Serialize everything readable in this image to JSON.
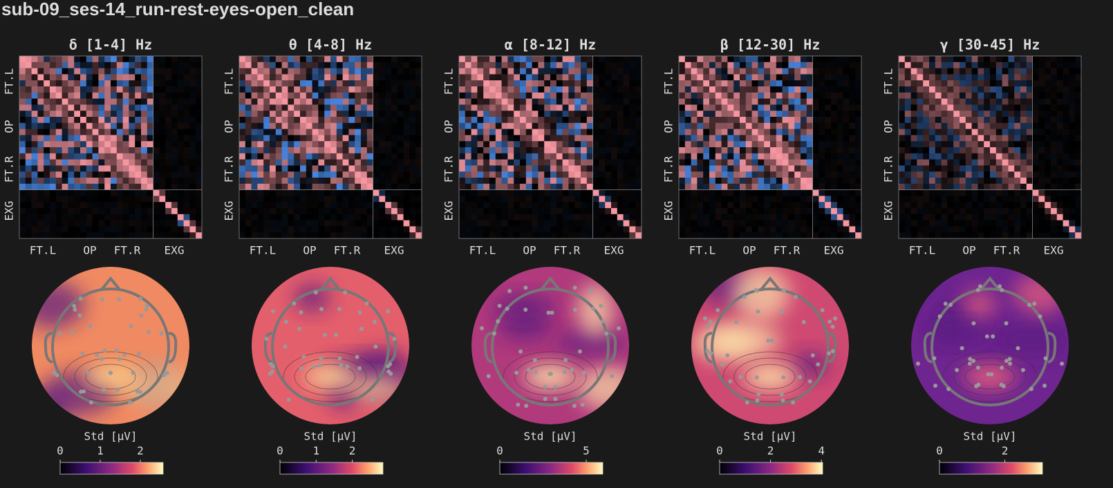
{
  "title": "sub-09_ses-14_run-rest-eyes-open_clean",
  "panels": [
    {
      "title": "δ [1-4] Hz",
      "row_labels": [
        "FT.L",
        "OP",
        "FT.R",
        "EXG"
      ],
      "col_labels": [
        "FT.L",
        "OP",
        "FT.R",
        "EXG"
      ],
      "colorbar": {
        "label": "Std [µV]",
        "lim": [
          0,
          2.57
        ],
        "ticks": [
          0,
          1,
          2
        ]
      }
    },
    {
      "title": "θ [4-8] Hz",
      "row_labels": [
        "FT.L",
        "OP",
        "FT.R",
        "EXG"
      ],
      "col_labels": [
        "FT.L",
        "OP",
        "FT.R",
        "EXG"
      ],
      "colorbar": {
        "label": "Std [µV]",
        "lim": [
          0,
          2.85
        ],
        "ticks": [
          0,
          1,
          2
        ]
      }
    },
    {
      "title": "α [8-12] Hz",
      "row_labels": [
        "FT.L",
        "OP",
        "FT.R",
        "EXG"
      ],
      "col_labels": [
        "FT.L",
        "OP",
        "FT.R",
        "EXG"
      ],
      "colorbar": {
        "label": "Std [µV]",
        "lim": [
          0,
          5.96
        ],
        "ticks": [
          0,
          5
        ]
      }
    },
    {
      "title": "β [12-30] Hz",
      "row_labels": [
        "FT.L",
        "OP",
        "FT.R",
        "EXG"
      ],
      "col_labels": [
        "FT.L",
        "OP",
        "FT.R",
        "EXG"
      ],
      "colorbar": {
        "label": "Std [µV]",
        "lim": [
          0,
          4.05
        ],
        "ticks": [
          0,
          2,
          4
        ]
      }
    },
    {
      "title": "γ [30-45] Hz",
      "row_labels": [
        "FT.L",
        "OP",
        "FT.R",
        "EXG"
      ],
      "col_labels": [
        "FT.L",
        "OP",
        "FT.R",
        "EXG"
      ],
      "colorbar": {
        "label": "Std [µV]",
        "lim": [
          0,
          3.15
        ],
        "ticks": [
          0,
          2
        ]
      }
    }
  ]
}
